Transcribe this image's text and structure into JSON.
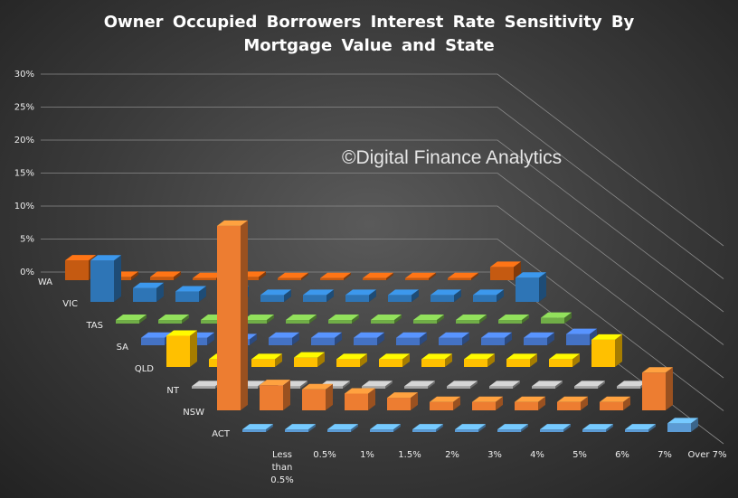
{
  "chart_data": {
    "type": "bar3d",
    "title": "Owner Occupied Borrowers Interest Rate Sensitivity By Mortgage Value and State",
    "annotation": "©Digital Finance Analytics",
    "categories": [
      "Less than 0.5%",
      "0.5%",
      "1%",
      "1.5%",
      "2%",
      "3%",
      "4%",
      "5%",
      "6%",
      "7%",
      "Over 7%"
    ],
    "series": [
      {
        "name": "WA",
        "color": "#c55a11",
        "values": [
          3,
          0.5,
          0.5,
          0.3,
          0.5,
          0.3,
          0.3,
          0.3,
          0.3,
          0.3,
          2
        ]
      },
      {
        "name": "VIC",
        "color": "#2e75b6",
        "values": [
          6,
          2,
          1.5,
          1.5,
          1,
          1,
          1,
          1,
          1,
          1,
          3.5
        ]
      },
      {
        "name": "TAS",
        "color": "#70ad47",
        "values": [
          0.5,
          0.5,
          0.5,
          0.5,
          0.5,
          0.5,
          0.5,
          0.5,
          0.5,
          0.5,
          0.8
        ]
      },
      {
        "name": "SA",
        "color": "#4472c4",
        "values": [
          1,
          1,
          0.8,
          1,
          1,
          1,
          1,
          1,
          1,
          1,
          1.5
        ]
      },
      {
        "name": "QLD",
        "color": "#ffc000",
        "values": [
          4,
          1,
          1,
          1.2,
          1,
          1,
          1,
          1,
          1,
          1,
          3.5
        ]
      },
      {
        "name": "NT",
        "color": "#a5a5a5",
        "values": [
          0.3,
          0.3,
          0.3,
          0.3,
          0.3,
          0.3,
          0.3,
          0.3,
          0.3,
          0.3,
          0.3
        ]
      },
      {
        "name": "NSW",
        "color": "#ed7d31",
        "values": [
          22,
          3,
          2.5,
          2,
          1.5,
          1,
          1,
          1,
          1,
          1,
          4.5
        ]
      },
      {
        "name": "ACT",
        "color": "#5b9bd5",
        "values": [
          0.3,
          0.3,
          0.3,
          0.3,
          0.3,
          0.3,
          0.3,
          0.3,
          0.3,
          0.3,
          1
        ]
      }
    ],
    "ylim": [
      0,
      30
    ],
    "yticks": [
      {
        "value": 0,
        "label": "0%"
      },
      {
        "value": 5,
        "label": "5%"
      },
      {
        "value": 10,
        "label": "10%"
      },
      {
        "value": 15,
        "label": "15%"
      },
      {
        "value": 20,
        "label": "20%"
      },
      {
        "value": 25,
        "label": "25%"
      },
      {
        "value": 30,
        "label": "30%"
      }
    ],
    "grid": true
  }
}
